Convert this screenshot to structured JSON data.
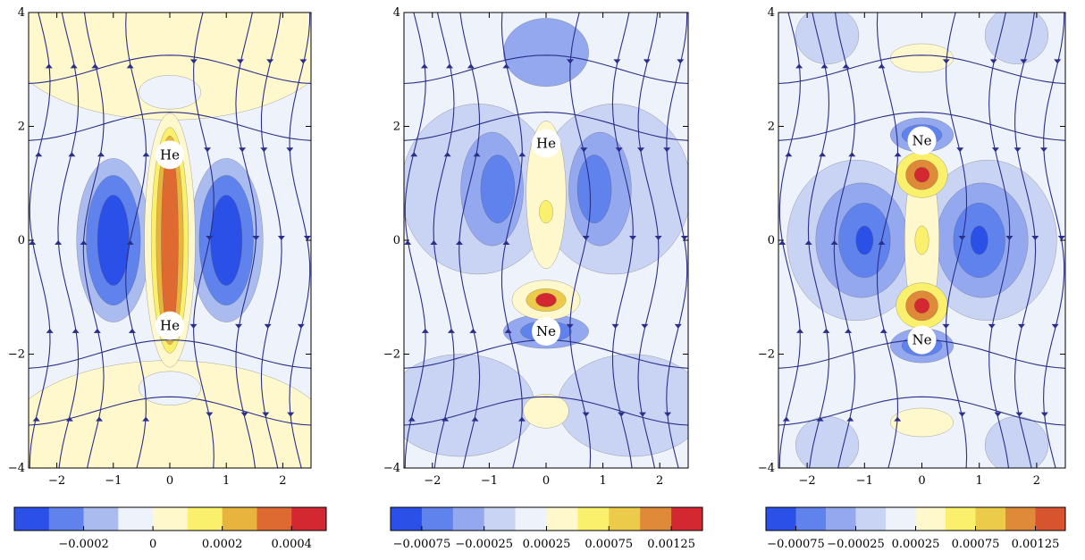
{
  "chart_data": [
    {
      "type": "heatmap",
      "title": "",
      "xlabel": "",
      "ylabel": "",
      "xlim": [
        -2.5,
        2.5
      ],
      "ylim": [
        -4,
        4
      ],
      "x_ticks": [
        "−2",
        "−1",
        "0",
        "1",
        "2"
      ],
      "y_ticks": [
        "−4",
        "−2",
        "0",
        "2",
        "4"
      ],
      "atoms": [
        {
          "label": "He",
          "x": 0,
          "y": 1.5
        },
        {
          "label": "He",
          "x": 0,
          "y": -1.5
        }
      ],
      "colorbar": {
        "colors": [
          "#2b50e8",
          "#5f82ec",
          "#a9bbef",
          "#eef2fa",
          "#fff8cc",
          "#fbf06c",
          "#e9b43e",
          "#df6a31",
          "#d32731"
        ],
        "tick_labels": [
          "−0.0002",
          "0",
          "0.0002",
          "0.0004"
        ]
      }
    },
    {
      "type": "heatmap",
      "title": "",
      "xlabel": "",
      "ylabel": "",
      "xlim": [
        -2.5,
        2.5
      ],
      "ylim": [
        -4,
        4
      ],
      "x_ticks": [
        "−2",
        "−1",
        "0",
        "1",
        "2"
      ],
      "y_ticks": [
        "−4",
        "−2",
        "0",
        "2",
        "4"
      ],
      "atoms": [
        {
          "label": "He",
          "x": 0,
          "y": 1.7
        },
        {
          "label": "Ne",
          "x": 0,
          "y": -1.6
        }
      ],
      "colorbar": {
        "colors": [
          "#2b50e8",
          "#5f82ec",
          "#93a8ee",
          "#c9d3f4",
          "#eef2fa",
          "#fff8cc",
          "#fbf06c",
          "#eccb4a",
          "#df8a38",
          "#d32731"
        ],
        "tick_labels": [
          "−0.00075",
          "−0.00025",
          "0.00025",
          "0.00075",
          "0.00125"
        ]
      }
    },
    {
      "type": "heatmap",
      "title": "",
      "xlabel": "",
      "ylabel": "",
      "xlim": [
        -2.5,
        2.5
      ],
      "ylim": [
        -4,
        4
      ],
      "x_ticks": [
        "−2",
        "−1",
        "0",
        "1",
        "2"
      ],
      "y_ticks": [
        "−4",
        "−2",
        "0",
        "2",
        "4"
      ],
      "atoms": [
        {
          "label": "Ne",
          "x": 0,
          "y": 1.75
        },
        {
          "label": "Ne",
          "x": 0,
          "y": -1.75
        }
      ],
      "colorbar": {
        "colors": [
          "#2b50e8",
          "#5f82ec",
          "#93a8ee",
          "#c9d3f4",
          "#eef2fa",
          "#fff8cc",
          "#fbf06c",
          "#eccb4a",
          "#df8a38",
          "#d7542f"
        ],
        "tick_labels": [
          "−0.00075",
          "−0.00025",
          "0.00025",
          "0.00075",
          "0.00125"
        ]
      }
    }
  ]
}
